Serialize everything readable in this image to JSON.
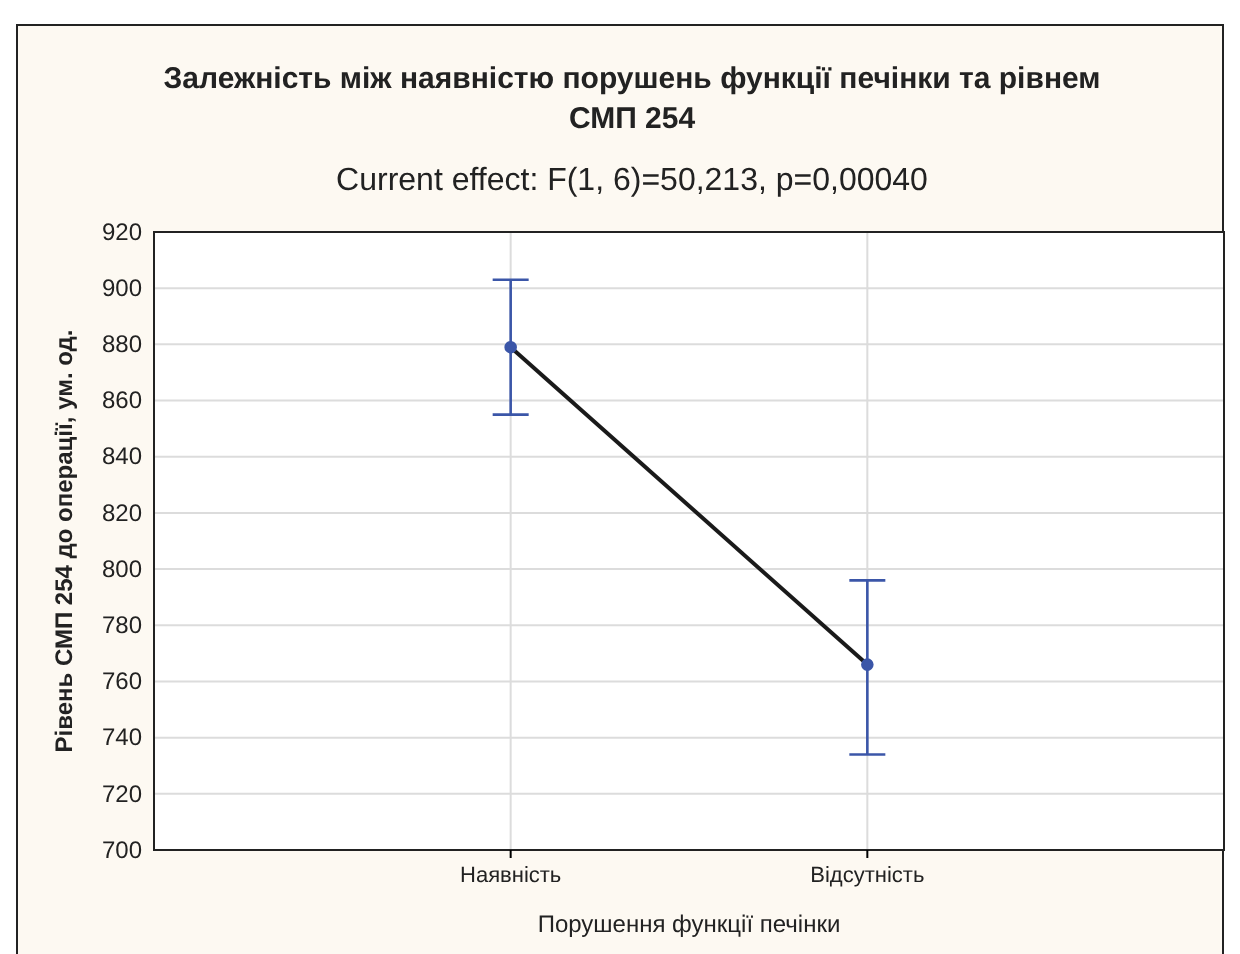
{
  "chart_data": {
    "type": "line",
    "title": "Залежність між наявністю порушень функції печінки та рівнем СМП 254",
    "subtitle": "Current effect: F(1, 6)=50,213, p=0,00040",
    "xlabel": "Порушення функції печінки",
    "ylabel": "Рівень СМП 254 до операції, ум. од.",
    "categories": [
      "Наявність",
      "Відсутність"
    ],
    "series": [
      {
        "color": "#1a1a1a",
        "colors": [
          "#3b56a8",
          "#3b56a8"
        ],
        "values": [
          879,
          766
        ],
        "errors": [
          [
            855,
            903
          ],
          [
            734,
            796
          ]
        ]
      }
    ],
    "ylim": [
      700,
      920
    ],
    "yticks": [
      700,
      720,
      740,
      760,
      780,
      800,
      820,
      840,
      860,
      880,
      900,
      920
    ],
    "grid": true,
    "marker": "circle",
    "line_style": "solid"
  }
}
